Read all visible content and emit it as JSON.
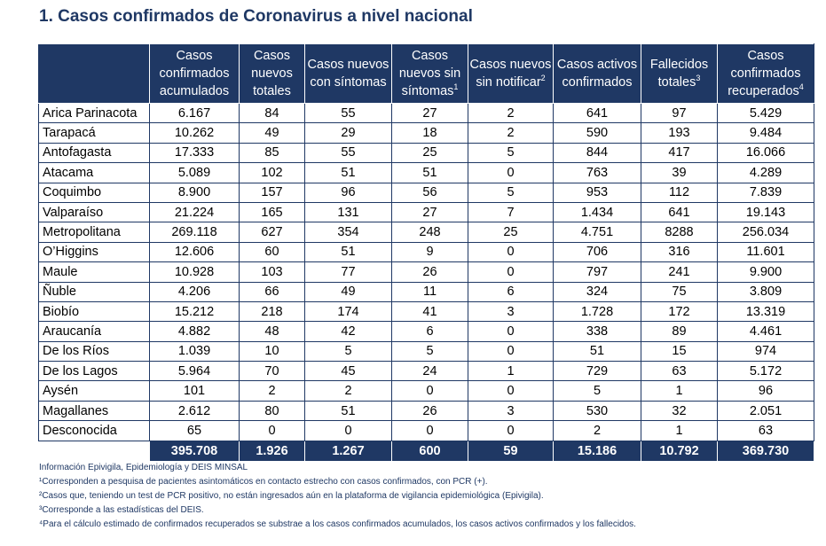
{
  "title": "1. Casos confirmados de Coronavirus a nivel nacional",
  "headers": [
    {
      "text": "",
      "sup": ""
    },
    {
      "text": "Casos confirmados acumulados",
      "sup": ""
    },
    {
      "text": "Casos nuevos totales",
      "sup": ""
    },
    {
      "text": "Casos nuevos con síntomas",
      "sup": ""
    },
    {
      "text": "Casos nuevos sin síntomas",
      "sup": "1"
    },
    {
      "text": "Casos nuevos sin notificar",
      "sup": "2"
    },
    {
      "text": "Casos activos confirmados",
      "sup": ""
    },
    {
      "text": "Fallecidos totales",
      "sup": "3"
    },
    {
      "text": "Casos confirmados recuperados",
      "sup": "4"
    }
  ],
  "rows": [
    [
      "Arica Parinacota",
      "6.167",
      "84",
      "55",
      "27",
      "2",
      "641",
      "97",
      "5.429"
    ],
    [
      "Tarapacá",
      "10.262",
      "49",
      "29",
      "18",
      "2",
      "590",
      "193",
      "9.484"
    ],
    [
      "Antofagasta",
      "17.333",
      "85",
      "55",
      "25",
      "5",
      "844",
      "417",
      "16.066"
    ],
    [
      "Atacama",
      "5.089",
      "102",
      "51",
      "51",
      "0",
      "763",
      "39",
      "4.289"
    ],
    [
      "Coquimbo",
      "8.900",
      "157",
      "96",
      "56",
      "5",
      "953",
      "112",
      "7.839"
    ],
    [
      "Valparaíso",
      "21.224",
      "165",
      "131",
      "27",
      "7",
      "1.434",
      "641",
      "19.143"
    ],
    [
      "Metropolitana",
      "269.118",
      "627",
      "354",
      "248",
      "25",
      "4.751",
      "8288",
      "256.034"
    ],
    [
      "O’Higgins",
      "12.606",
      "60",
      "51",
      "9",
      "0",
      "706",
      "316",
      "11.601"
    ],
    [
      "Maule",
      "10.928",
      "103",
      "77",
      "26",
      "0",
      "797",
      "241",
      "9.900"
    ],
    [
      "Ñuble",
      "4.206",
      "66",
      "49",
      "11",
      "6",
      "324",
      "75",
      "3.809"
    ],
    [
      "Biobío",
      "15.212",
      "218",
      "174",
      "41",
      "3",
      "1.728",
      "172",
      "13.319"
    ],
    [
      "Araucanía",
      "4.882",
      "48",
      "42",
      "6",
      "0",
      "338",
      "89",
      "4.461"
    ],
    [
      "De los Ríos",
      "1.039",
      "10",
      "5",
      "5",
      "0",
      "51",
      "15",
      "974"
    ],
    [
      "De los Lagos",
      "5.964",
      "70",
      "45",
      "24",
      "1",
      "729",
      "63",
      "5.172"
    ],
    [
      "Aysén",
      "101",
      "2",
      "2",
      "0",
      "0",
      "5",
      "1",
      "96"
    ],
    [
      "Magallanes",
      "2.612",
      "80",
      "51",
      "26",
      "3",
      "530",
      "32",
      "2.051"
    ],
    [
      "Desconocida",
      "65",
      "0",
      "0",
      "0",
      "0",
      "2",
      "1",
      "63"
    ]
  ],
  "totals": [
    "",
    "395.708",
    "1.926",
    "1.267",
    "600",
    "59",
    "15.186",
    "10.792",
    "369.730"
  ],
  "notes": [
    "Información Epivigila, Epidemiología y DEIS MINSAL",
    "¹Corresponden a pesquisa de pacientes asintomáticos en contacto estrecho con casos confirmados, con PCR (+).",
    "²Casos que, teniendo un test de PCR positivo, no están ingresados aún en la plataforma de vigilancia epidemiológica (Epivigila).",
    "³Corresponde a las estadísticas del DEIS.",
    "⁴Para el cálculo estimado de confirmados recuperados se substrae a los casos confirmados acumulados, los casos activos confirmados y los fallecidos."
  ]
}
